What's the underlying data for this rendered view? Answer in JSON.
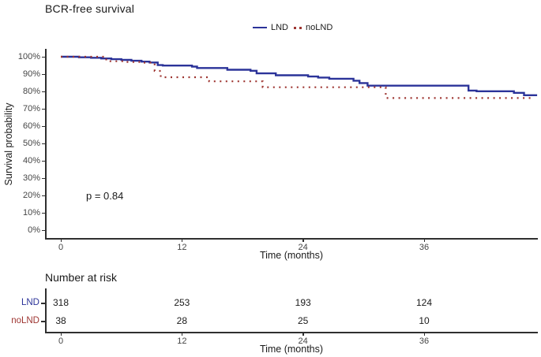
{
  "title": "BCR-free survival",
  "legend": {
    "items": [
      {
        "label": "LND",
        "color": "#2b3399",
        "style": "solid"
      },
      {
        "label": "noLND",
        "color": "#9e3531",
        "style": "dotted"
      }
    ]
  },
  "annotation": {
    "p_value": "p = 0.84"
  },
  "axes": {
    "y_label": "Survival probability",
    "x_label": "Time (months)",
    "y_tick_labels": [
      "100%",
      "90%",
      "80%",
      "70%",
      "60%",
      "50%",
      "40%",
      "30%",
      "20%",
      "10%",
      "0%"
    ],
    "x_tick_labels": [
      "0",
      "12",
      "24",
      "36"
    ]
  },
  "chart_data": {
    "type": "line",
    "subtype": "kaplan-meier-step",
    "title": "BCR-free survival",
    "xlabel": "Time (months)",
    "ylabel": "Survival probability",
    "xlim": [
      -1.6,
      47.6
    ],
    "ylim": [
      0,
      100
    ],
    "x_ticks": [
      0,
      12,
      24,
      36
    ],
    "y_ticks_pct": [
      100,
      90,
      80,
      70,
      60,
      50,
      40,
      30,
      20,
      10,
      0
    ],
    "grid": false,
    "legend_position": "top-center",
    "p_value_text": "p = 0.84",
    "series": [
      {
        "name": "LND",
        "color": "#2b3399",
        "line_style": "solid",
        "steps": [
          [
            0,
            100
          ],
          [
            1.8,
            99.7
          ],
          [
            3,
            99.4
          ],
          [
            4,
            99.0
          ],
          [
            5,
            98.6
          ],
          [
            6,
            98.2
          ],
          [
            7,
            97.7
          ],
          [
            8,
            97.2
          ],
          [
            8.8,
            96.7
          ],
          [
            9.6,
            95.2
          ],
          [
            10.1,
            94.9
          ],
          [
            13,
            94.3
          ],
          [
            13.5,
            93.5
          ],
          [
            16.5,
            92.5
          ],
          [
            18.8,
            91.9
          ],
          [
            19.4,
            90.4
          ],
          [
            21.3,
            89.3
          ],
          [
            24.5,
            88.6
          ],
          [
            25.5,
            88.0
          ],
          [
            26.6,
            87.3
          ],
          [
            29.0,
            86.2
          ],
          [
            29.6,
            84.8
          ],
          [
            30.4,
            83.3
          ],
          [
            40.4,
            80.5
          ],
          [
            41.2,
            80.1
          ],
          [
            44.9,
            79.2
          ],
          [
            45.9,
            77.8
          ],
          [
            47.2,
            77.8
          ]
        ]
      },
      {
        "name": "noLND",
        "color": "#9e3531",
        "line_style": "dotted",
        "steps": [
          [
            0,
            100
          ],
          [
            4.5,
            97.4
          ],
          [
            6.5,
            97.0
          ],
          [
            8,
            96.6
          ],
          [
            9.3,
            91.8
          ],
          [
            9.9,
            88.2
          ],
          [
            14.7,
            85.8
          ],
          [
            20,
            82.4
          ],
          [
            32.2,
            76.2
          ],
          [
            46.6,
            76.2
          ]
        ]
      }
    ]
  },
  "risk_table": {
    "header": "Number at risk",
    "x_label": "Time (months)",
    "x_tick_labels": [
      "0",
      "12",
      "24",
      "36"
    ],
    "rows": [
      {
        "label": "LND",
        "color": "#2b3399",
        "values": [
          "318",
          "253",
          "193",
          "124"
        ]
      },
      {
        "label": "noLND",
        "color": "#9e3531",
        "values": [
          "38",
          "28",
          "25",
          "10"
        ]
      }
    ]
  },
  "colors": {
    "lnd": "#2b3399",
    "nolnd": "#9e3531",
    "axis": "#2f2f2f",
    "tick_text": "#454545",
    "text": "#1a1a1a"
  }
}
